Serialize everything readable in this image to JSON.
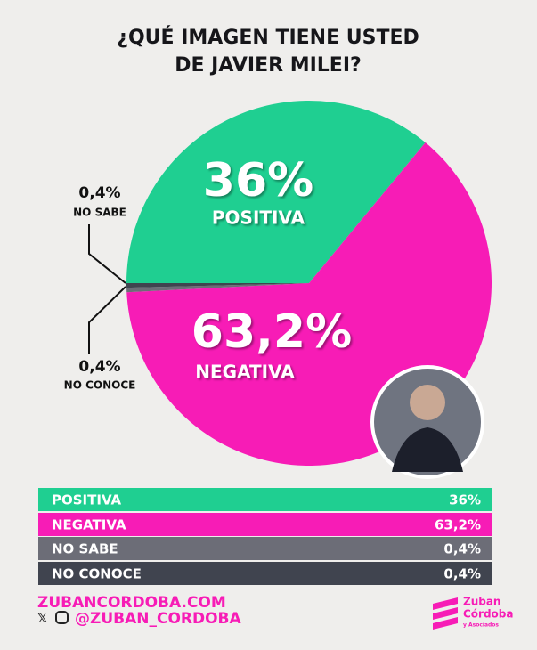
{
  "chart_data": {
    "type": "pie",
    "title": "¿QUÉ IMAGEN TIENE USTED DE JAVIER MILEI?",
    "categories": [
      "POSITIVA",
      "NEGATIVA",
      "NO SABE",
      "NO CONOCE"
    ],
    "values": [
      36,
      63.2,
      0.4,
      0.4
    ],
    "value_labels": [
      "36%",
      "63,2%",
      "0,4%",
      "0,4%"
    ],
    "colors": [
      "#1fcf91",
      "#f71cb6",
      "#6c6d77",
      "#40444f"
    ]
  },
  "footer": {
    "website": "ZUBANCORDOBA.COM",
    "handle": "@ZUBAN_CORDOBA",
    "logo": [
      "Zuban",
      "Córdoba",
      "y Asociados"
    ]
  }
}
